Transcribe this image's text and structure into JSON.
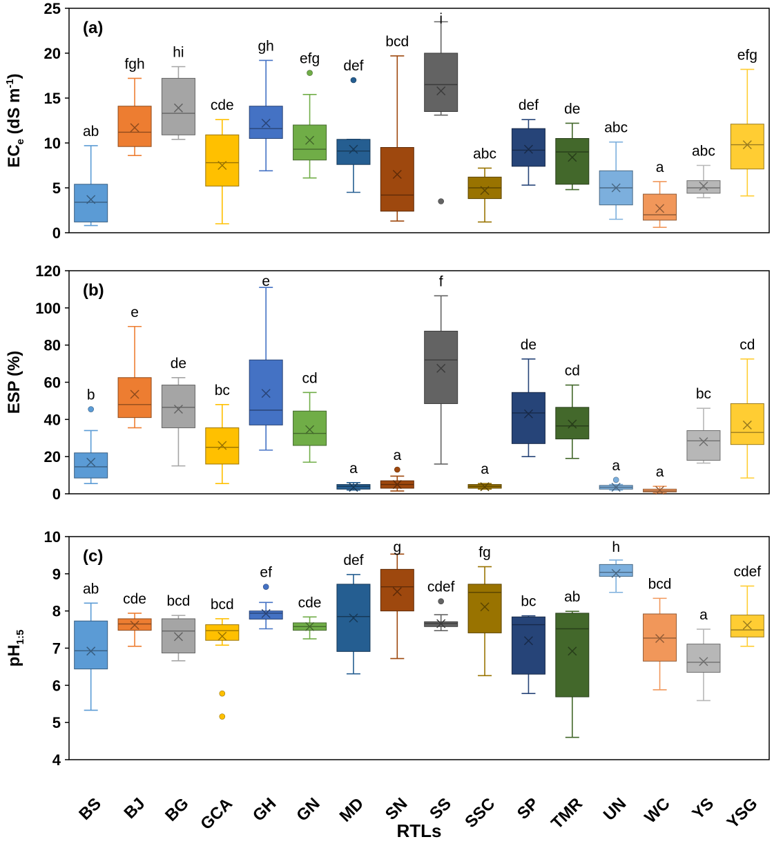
{
  "chart_data": {
    "type": "box",
    "categories": [
      "BS",
      "BJ",
      "BG",
      "GCA",
      "GH",
      "GN",
      "MD",
      "SN",
      "SS",
      "SSC",
      "SP",
      "TMR",
      "UN",
      "WC",
      "YS",
      "YSG"
    ],
    "colors": {
      "BS": "#5B9BD5",
      "BJ": "#ED7D31",
      "BG": "#A5A5A5",
      "GCA": "#FFC000",
      "GH": "#4472C4",
      "GN": "#70AD47",
      "MD": "#255E91",
      "SN": "#9E480E",
      "SS": "#636363",
      "SSC": "#997300",
      "SP": "#264478",
      "TMR": "#43682B",
      "UN": "#7CAFDD",
      "WC": "#F1975A",
      "YS": "#B7B7B7",
      "YSG": "#FFCD33"
    },
    "xlabel": "RTLs",
    "panels": [
      {
        "label": "(a)",
        "ylabel": "EC",
        "ylabel_sub": "e",
        "ylabel_unit": " (dS m",
        "ylabel_sup": "-1",
        "ylabel_close": ")",
        "ylim": [
          0,
          25
        ],
        "yticks": [
          0,
          5,
          10,
          15,
          20,
          25
        ],
        "boxes": [
          {
            "cat": "BS",
            "min": 0.8,
            "q1": 1.2,
            "median": 3.4,
            "q3": 5.4,
            "max": 9.7,
            "mean": 3.7,
            "outliers": [],
            "letter": "ab"
          },
          {
            "cat": "BJ",
            "min": 8.6,
            "q1": 9.6,
            "median": 11.2,
            "q3": 14.1,
            "max": 17.2,
            "mean": 11.7,
            "outliers": [],
            "letter": "fgh"
          },
          {
            "cat": "BG",
            "min": 10.4,
            "q1": 10.9,
            "median": 13.3,
            "q3": 17.2,
            "max": 18.5,
            "mean": 13.9,
            "outliers": [],
            "letter": "hi"
          },
          {
            "cat": "GCA",
            "min": 1.0,
            "q1": 5.2,
            "median": 7.8,
            "q3": 10.9,
            "max": 12.6,
            "mean": 7.5,
            "outliers": [],
            "letter": "cde"
          },
          {
            "cat": "GH",
            "min": 6.9,
            "q1": 10.5,
            "median": 11.6,
            "q3": 14.1,
            "max": 19.2,
            "mean": 12.2,
            "outliers": [],
            "letter": "gh"
          },
          {
            "cat": "GN",
            "min": 6.1,
            "q1": 8.1,
            "median": 9.3,
            "q3": 12.0,
            "max": 15.4,
            "mean": 10.3,
            "outliers": [
              17.8
            ],
            "letter": "efg"
          },
          {
            "cat": "MD",
            "min": 4.5,
            "q1": 7.6,
            "median": 9.1,
            "q3": 10.4,
            "max": 10.4,
            "mean": 9.3,
            "outliers": [
              17.0
            ],
            "letter": "def"
          },
          {
            "cat": "SN",
            "min": 1.3,
            "q1": 2.4,
            "median": 4.2,
            "q3": 9.5,
            "max": 19.7,
            "mean": 6.5,
            "outliers": [],
            "letter": "bcd"
          },
          {
            "cat": "SS",
            "min": 13.1,
            "q1": 13.5,
            "median": 16.5,
            "q3": 20.0,
            "max": 23.5,
            "mean": 15.8,
            "outliers": [
              3.5
            ],
            "letter": "i"
          },
          {
            "cat": "SSC",
            "min": 1.2,
            "q1": 3.8,
            "median": 5.0,
            "q3": 6.2,
            "max": 7.2,
            "mean": 4.7,
            "outliers": [],
            "letter": "abc"
          },
          {
            "cat": "SP",
            "min": 5.3,
            "q1": 7.4,
            "median": 9.2,
            "q3": 11.6,
            "max": 12.6,
            "mean": 9.3,
            "outliers": [],
            "letter": "def"
          },
          {
            "cat": "TMR",
            "min": 4.8,
            "q1": 5.4,
            "median": 9.0,
            "q3": 10.5,
            "max": 12.2,
            "mean": 8.4,
            "outliers": [],
            "letter": "de"
          },
          {
            "cat": "UN",
            "min": 1.5,
            "q1": 3.1,
            "median": 5.0,
            "q3": 6.9,
            "max": 10.1,
            "mean": 5.0,
            "outliers": [],
            "letter": "abc"
          },
          {
            "cat": "WC",
            "min": 0.6,
            "q1": 1.4,
            "median": 2.0,
            "q3": 4.3,
            "max": 5.7,
            "mean": 2.7,
            "outliers": [],
            "letter": "a"
          },
          {
            "cat": "YS",
            "min": 3.9,
            "q1": 4.4,
            "median": 5.0,
            "q3": 5.8,
            "max": 7.5,
            "mean": 5.2,
            "outliers": [],
            "letter": "abc"
          },
          {
            "cat": "YSG",
            "min": 4.1,
            "q1": 7.1,
            "median": 9.8,
            "q3": 12.1,
            "max": 18.2,
            "mean": 9.8,
            "outliers": [],
            "letter": "efg"
          }
        ]
      },
      {
        "label": "(b)",
        "ylabel": "ESP (%)",
        "ylim": [
          0,
          120
        ],
        "yticks": [
          0,
          20,
          40,
          60,
          80,
          100,
          120
        ],
        "boxes": [
          {
            "cat": "BS",
            "min": 5.5,
            "q1": 8.5,
            "median": 14.5,
            "q3": 22.0,
            "max": 34.0,
            "mean": 17.0,
            "outliers": [
              45.5
            ],
            "letter": "b"
          },
          {
            "cat": "BJ",
            "min": 35.5,
            "q1": 41.0,
            "median": 48.0,
            "q3": 62.5,
            "max": 90.0,
            "mean": 53.5,
            "outliers": [],
            "letter": "e"
          },
          {
            "cat": "BG",
            "min": 15.0,
            "q1": 35.5,
            "median": 46.5,
            "q3": 58.5,
            "max": 62.5,
            "mean": 45.5,
            "outliers": [],
            "letter": "de"
          },
          {
            "cat": "GCA",
            "min": 5.5,
            "q1": 16.0,
            "median": 25.0,
            "q3": 35.5,
            "max": 48.0,
            "mean": 26.0,
            "outliers": [],
            "letter": "bc"
          },
          {
            "cat": "GH",
            "min": 23.5,
            "q1": 37.0,
            "median": 45.0,
            "q3": 72.0,
            "max": 111.0,
            "mean": 54.0,
            "outliers": [],
            "letter": "e"
          },
          {
            "cat": "GN",
            "min": 17.0,
            "q1": 26.0,
            "median": 32.5,
            "q3": 44.5,
            "max": 54.5,
            "mean": 34.5,
            "outliers": [],
            "letter": "cd"
          },
          {
            "cat": "MD",
            "min": 2.0,
            "q1": 2.5,
            "median": 4.0,
            "q3": 5.0,
            "max": 6.0,
            "mean": 3.5,
            "outliers": [],
            "letter": "a"
          },
          {
            "cat": "SN",
            "min": 1.5,
            "q1": 3.0,
            "median": 5.0,
            "q3": 7.0,
            "max": 9.5,
            "mean": 5.0,
            "outliers": [
              13.0
            ],
            "letter": "a"
          },
          {
            "cat": "SS",
            "min": 16.0,
            "q1": 48.5,
            "median": 72.0,
            "q3": 87.5,
            "max": 106.5,
            "mean": 67.5,
            "outliers": [],
            "letter": "f"
          },
          {
            "cat": "SSC",
            "min": 2.5,
            "q1": 3.0,
            "median": 4.0,
            "q3": 5.0,
            "max": 5.5,
            "mean": 3.8,
            "outliers": [],
            "letter": "a"
          },
          {
            "cat": "SP",
            "min": 20.0,
            "q1": 27.0,
            "median": 43.5,
            "q3": 54.5,
            "max": 72.5,
            "mean": 43.0,
            "outliers": [],
            "letter": "de"
          },
          {
            "cat": "TMR",
            "min": 19.0,
            "q1": 29.5,
            "median": 36.5,
            "q3": 46.5,
            "max": 58.5,
            "mean": 37.5,
            "outliers": [],
            "letter": "cd"
          },
          {
            "cat": "UN",
            "min": 2.0,
            "q1": 2.5,
            "median": 3.5,
            "q3": 4.5,
            "max": 5.0,
            "mean": 3.5,
            "outliers": [
              7.5
            ],
            "letter": "a"
          },
          {
            "cat": "WC",
            "min": 0.5,
            "q1": 1.0,
            "median": 1.5,
            "q3": 2.5,
            "max": 4.0,
            "mean": 1.8,
            "outliers": [],
            "letter": "a"
          },
          {
            "cat": "YS",
            "min": 16.5,
            "q1": 18.0,
            "median": 28.5,
            "q3": 34.0,
            "max": 46.0,
            "mean": 28.0,
            "outliers": [],
            "letter": "bc"
          },
          {
            "cat": "YSG",
            "min": 8.5,
            "q1": 26.5,
            "median": 33.0,
            "q3": 48.5,
            "max": 72.5,
            "mean": 37.0,
            "outliers": [],
            "letter": "cd"
          }
        ]
      },
      {
        "label": "(c)",
        "ylabel": "pH",
        "ylabel_sub": "1:5",
        "ylim": [
          4,
          10
        ],
        "yticks": [
          4,
          5,
          6,
          7,
          8,
          9,
          10
        ],
        "boxes": [
          {
            "cat": "BS",
            "min": 5.33,
            "q1": 6.44,
            "median": 6.93,
            "q3": 7.73,
            "max": 8.21,
            "mean": 6.92,
            "outliers": [],
            "letter": "ab"
          },
          {
            "cat": "BJ",
            "min": 7.05,
            "q1": 7.48,
            "median": 7.65,
            "q3": 7.79,
            "max": 7.94,
            "mean": 7.62,
            "outliers": [],
            "letter": "cde"
          },
          {
            "cat": "BG",
            "min": 6.66,
            "q1": 6.87,
            "median": 7.46,
            "q3": 7.79,
            "max": 7.88,
            "mean": 7.31,
            "outliers": [],
            "letter": "bcd"
          },
          {
            "cat": "GCA",
            "min": 7.08,
            "q1": 7.21,
            "median": 7.47,
            "q3": 7.63,
            "max": 7.79,
            "mean": 7.32,
            "outliers": [
              5.78,
              5.16
            ],
            "letter": "bcd"
          },
          {
            "cat": "GH",
            "min": 7.52,
            "q1": 7.78,
            "median": 7.94,
            "q3": 8.0,
            "max": 8.23,
            "mean": 7.93,
            "outliers": [
              8.65
            ],
            "letter": "ef"
          },
          {
            "cat": "GN",
            "min": 7.25,
            "q1": 7.48,
            "median": 7.58,
            "q3": 7.68,
            "max": 7.84,
            "mean": 7.58,
            "outliers": [],
            "letter": "cde"
          },
          {
            "cat": "MD",
            "min": 6.31,
            "q1": 6.91,
            "median": 7.85,
            "q3": 8.72,
            "max": 8.98,
            "mean": 7.81,
            "outliers": [],
            "letter": "def"
          },
          {
            "cat": "SN",
            "min": 6.72,
            "q1": 8.0,
            "median": 8.65,
            "q3": 9.12,
            "max": 9.53,
            "mean": 8.52,
            "outliers": [],
            "letter": "g"
          },
          {
            "cat": "SS",
            "min": 7.47,
            "q1": 7.58,
            "median": 7.66,
            "q3": 7.71,
            "max": 7.9,
            "mean": 7.66,
            "outliers": [
              8.26
            ],
            "letter": "cdef"
          },
          {
            "cat": "SSC",
            "min": 6.26,
            "q1": 7.41,
            "median": 8.5,
            "q3": 8.72,
            "max": 9.19,
            "mean": 8.11,
            "outliers": [],
            "letter": "fg"
          },
          {
            "cat": "SP",
            "min": 5.78,
            "q1": 6.3,
            "median": 7.63,
            "q3": 7.84,
            "max": 7.87,
            "mean": 7.2,
            "outliers": [],
            "letter": "bc"
          },
          {
            "cat": "TMR",
            "min": 4.6,
            "q1": 5.69,
            "median": 7.52,
            "q3": 7.94,
            "max": 7.99,
            "mean": 6.92,
            "outliers": [],
            "letter": "ab"
          },
          {
            "cat": "UN",
            "min": 8.5,
            "q1": 8.93,
            "median": 9.04,
            "q3": 9.25,
            "max": 9.37,
            "mean": 9.01,
            "outliers": [],
            "letter": "h"
          },
          {
            "cat": "WC",
            "min": 5.88,
            "q1": 6.65,
            "median": 7.27,
            "q3": 7.92,
            "max": 8.34,
            "mean": 7.26,
            "outliers": [],
            "letter": "bcd"
          },
          {
            "cat": "YS",
            "min": 5.59,
            "q1": 6.35,
            "median": 6.62,
            "q3": 7.11,
            "max": 7.51,
            "mean": 6.64,
            "outliers": [],
            "letter": "a"
          },
          {
            "cat": "YSG",
            "min": 7.05,
            "q1": 7.3,
            "median": 7.49,
            "q3": 7.89,
            "max": 8.67,
            "mean": 7.62,
            "outliers": [],
            "letter": "cdef"
          }
        ]
      }
    ]
  }
}
